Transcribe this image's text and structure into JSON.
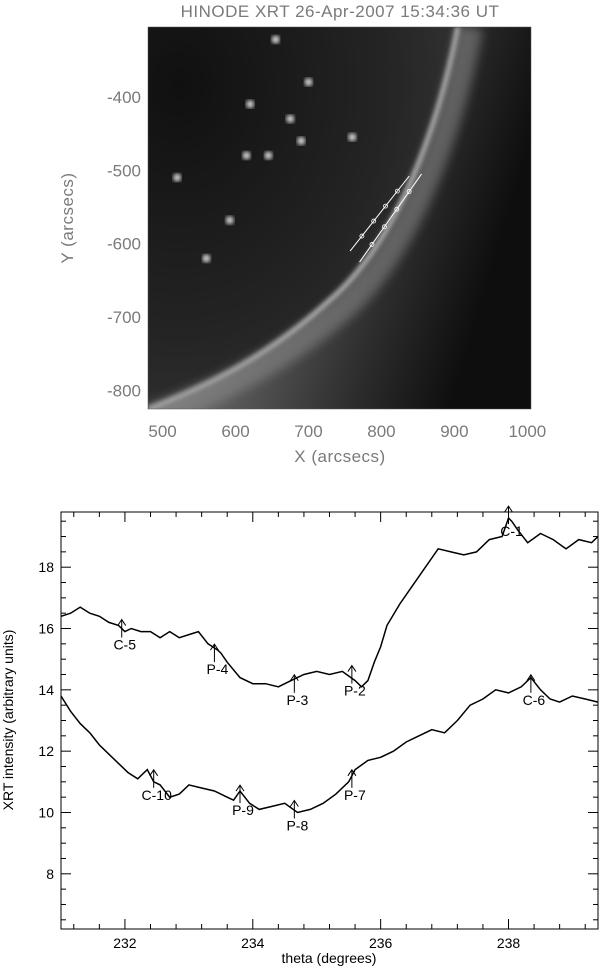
{
  "chart_data": [
    {
      "type": "image",
      "title": "HINODE XRT 26-Apr-2007 15:34:36 UT",
      "xlabel": "X (arcsecs)",
      "ylabel": "Y (arcsecs)",
      "xlim": [
        480,
        1005
      ],
      "ylim": [
        -825,
        -305
      ],
      "xticks": [
        "500",
        "600",
        "700",
        "800",
        "900",
        "1000"
      ],
      "yticks": [
        "-400",
        "-500",
        "-600",
        "-700",
        "-800"
      ],
      "slit_lines": [
        {
          "x": [
            757,
            838
          ],
          "y": [
            -610,
            -508
          ]
        },
        {
          "x": [
            770,
            855
          ],
          "y": [
            -625,
            -505
          ]
        }
      ],
      "bright_points": [
        {
          "x": 655,
          "y": -322
        },
        {
          "x": 700,
          "y": -380
        },
        {
          "x": 675,
          "y": -430
        },
        {
          "x": 690,
          "y": -460
        },
        {
          "x": 615,
          "y": -480
        },
        {
          "x": 645,
          "y": -480
        },
        {
          "x": 592,
          "y": -568
        },
        {
          "x": 560,
          "y": -620
        },
        {
          "x": 760,
          "y": -455
        },
        {
          "x": 520,
          "y": -510
        },
        {
          "x": 620,
          "y": -410
        }
      ]
    },
    {
      "type": "line",
      "xlabel": "theta (degrees)",
      "ylabel": "XRT intensity (arbitrary units)",
      "xlim": [
        231,
        239.4
      ],
      "ylim": [
        6.2,
        19.8
      ],
      "xticks": [
        232,
        234,
        236,
        238
      ],
      "yticks": [
        8,
        10,
        12,
        14,
        16,
        18
      ],
      "series": [
        {
          "x": [
            231.0,
            231.15,
            231.3,
            231.45,
            231.6,
            231.75,
            231.9,
            232.0,
            232.1,
            232.25,
            232.4,
            232.55,
            232.7,
            232.85,
            233.0,
            233.15,
            233.3,
            233.45,
            233.5,
            233.6,
            233.8,
            234.0,
            234.2,
            234.4,
            234.6,
            234.8,
            235.0,
            235.2,
            235.4,
            235.6,
            235.7,
            235.8,
            235.9,
            236.0,
            236.1,
            236.3,
            236.5,
            236.7,
            236.9,
            237.1,
            237.3,
            237.5,
            237.7,
            237.9,
            238.0,
            238.05,
            238.15,
            238.3,
            238.5,
            238.7,
            238.9,
            239.1,
            239.3,
            239.4
          ],
          "y": [
            16.4,
            16.5,
            16.7,
            16.5,
            16.4,
            16.2,
            16.1,
            15.9,
            16.0,
            15.9,
            15.9,
            15.7,
            15.9,
            15.7,
            15.8,
            15.9,
            15.5,
            15.3,
            15.2,
            14.9,
            14.4,
            14.2,
            14.2,
            14.1,
            14.3,
            14.5,
            14.6,
            14.5,
            14.6,
            14.3,
            14.1,
            14.3,
            14.9,
            15.4,
            16.1,
            16.8,
            17.4,
            18.0,
            18.6,
            18.5,
            18.4,
            18.5,
            18.9,
            19.0,
            19.6,
            19.5,
            19.2,
            18.8,
            19.1,
            18.9,
            18.6,
            18.9,
            18.8,
            19.0
          ]
        },
        {
          "x": [
            231.0,
            231.15,
            231.3,
            231.45,
            231.6,
            231.75,
            231.9,
            232.05,
            232.2,
            232.35,
            232.45,
            232.55,
            232.7,
            232.85,
            233.0,
            233.2,
            233.4,
            233.6,
            233.7,
            233.8,
            233.95,
            234.1,
            234.3,
            234.5,
            234.7,
            234.9,
            235.1,
            235.3,
            235.5,
            235.6,
            235.8,
            236.0,
            236.2,
            236.4,
            236.6,
            236.8,
            237.0,
            237.2,
            237.4,
            237.6,
            237.8,
            238.0,
            238.2,
            238.35,
            238.5,
            238.65,
            238.8,
            239.0,
            239.2,
            239.4
          ],
          "y": [
            13.8,
            13.3,
            12.9,
            12.6,
            12.2,
            11.9,
            11.6,
            11.3,
            11.1,
            11.4,
            11.0,
            10.9,
            10.5,
            10.6,
            10.9,
            10.8,
            10.7,
            10.5,
            10.4,
            10.7,
            10.3,
            10.1,
            10.2,
            10.3,
            10.0,
            10.1,
            10.3,
            10.6,
            11.0,
            11.4,
            11.7,
            11.8,
            12.0,
            12.3,
            12.5,
            12.7,
            12.6,
            13.0,
            13.5,
            13.7,
            14.0,
            13.9,
            14.1,
            14.4,
            14.0,
            13.7,
            13.6,
            13.8,
            13.7,
            13.6
          ]
        }
      ],
      "annotations": [
        {
          "label": "C-1",
          "x": 238.0,
          "y": 19.6
        },
        {
          "label": "C-5",
          "x": 231.95,
          "y": 15.9
        },
        {
          "label": "P-4",
          "x": 233.4,
          "y": 15.1
        },
        {
          "label": "P-3",
          "x": 234.65,
          "y": 14.1
        },
        {
          "label": "P-2",
          "x": 235.55,
          "y": 14.4
        },
        {
          "label": "C-6",
          "x": 238.35,
          "y": 14.1
        },
        {
          "label": "C-10",
          "x": 232.45,
          "y": 11.0
        },
        {
          "label": "P-9",
          "x": 233.8,
          "y": 10.5
        },
        {
          "label": "P-8",
          "x": 234.65,
          "y": 10.0
        },
        {
          "label": "P-7",
          "x": 235.55,
          "y": 11.0
        }
      ]
    }
  ]
}
